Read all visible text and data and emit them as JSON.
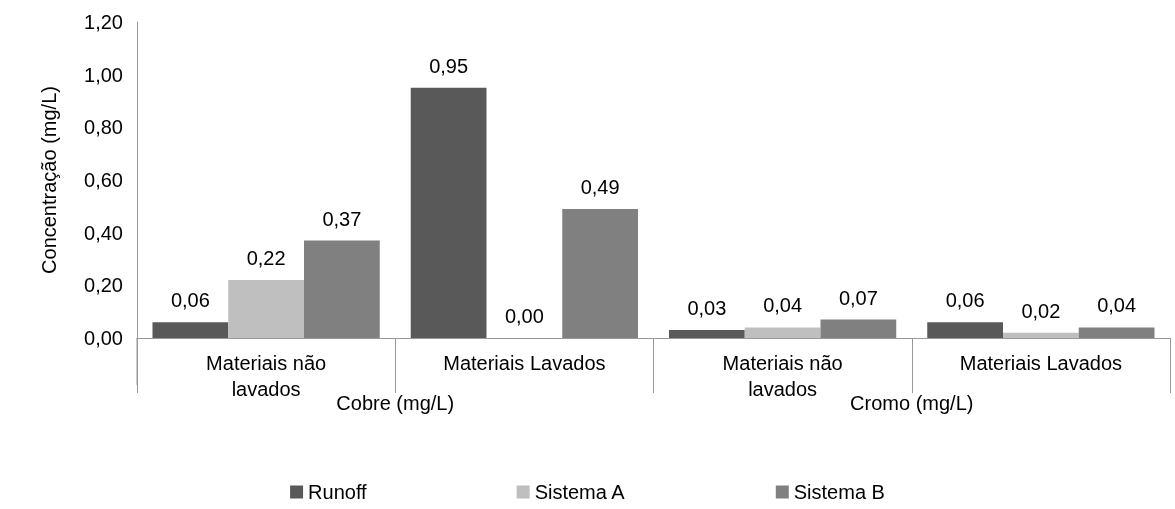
{
  "chart_data": {
    "type": "bar",
    "ylabel": "Concentração (mg/L)",
    "categories": [
      "Materiais não\nlavados",
      "Materiais Lavados",
      "Materiais não\nlavados",
      "Materiais Lavados"
    ],
    "annotations": [
      "Cobre (mg/L)",
      "Cromo (mg/L)"
    ],
    "series": [
      {
        "name": "Runoff",
        "color": "#595959",
        "values": [
          0.06,
          0.95,
          0.03,
          0.06
        ],
        "value_labels": [
          "0,06",
          "0,95",
          "0,03",
          "0,06"
        ]
      },
      {
        "name": "Sistema A",
        "color": "#bfbfbf",
        "values": [
          0.22,
          0,
          0.04,
          0.02
        ],
        "value_labels": [
          "0,22",
          "0,00",
          "0,04",
          "0,02"
        ]
      },
      {
        "name": "Sistema B",
        "color": "#808080",
        "values": [
          0.37,
          0.49,
          0.07,
          0.04
        ],
        "value_labels": [
          "0,37",
          "0,49",
          "0,07",
          "0,04"
        ]
      }
    ],
    "ylim": [
      0,
      1.2
    ],
    "yticks": [
      {
        "value": 0,
        "label": "0,00"
      },
      {
        "value": 0.2,
        "label": "0,20"
      },
      {
        "value": 0.4,
        "label": "0,40"
      },
      {
        "value": 0.6,
        "label": "0,60"
      },
      {
        "value": 0.8,
        "label": "0,80"
      },
      {
        "value": 1,
        "label": "1,00"
      },
      {
        "value": 1.2,
        "label": "1,20"
      }
    ],
    "grid": false,
    "legend": "bottom"
  }
}
